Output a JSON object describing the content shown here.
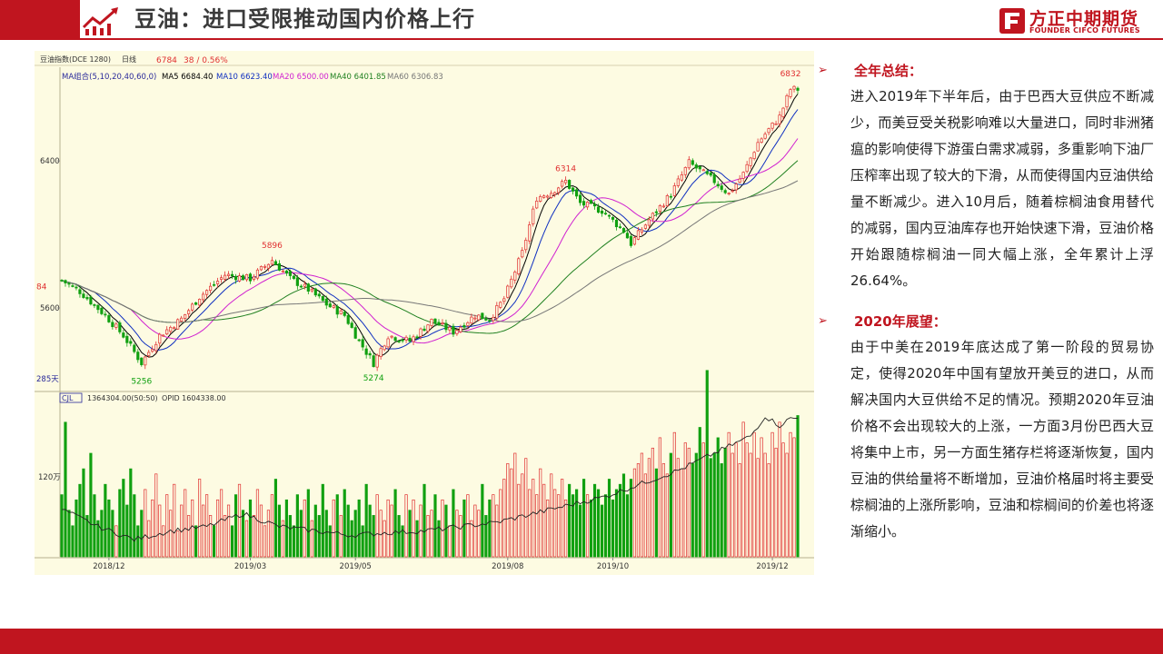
{
  "header": {
    "title": "豆油：进口受限推动国内价格上行",
    "brand_cn": "方正中期期货",
    "brand_en": "FOUNDER CIFCO FUTURES"
  },
  "colors": {
    "brand_red": "#c0151f",
    "chart_bg": "#fdfbe2",
    "up": "#e03030",
    "down": "#10a010"
  },
  "chart_data": {
    "type": "candlestick",
    "info_bar": {
      "symbol": "豆油指数(DCE 1280)",
      "period": "日线",
      "last": "6784",
      "change": "38 / 0.56%"
    },
    "ma_legend": [
      {
        "label": "MA组合(5,10,20,40,60,0)",
        "color": "#2a2a9a"
      },
      {
        "label": "MA5 6684.40",
        "color": "#000000"
      },
      {
        "label": "MA10 6623.40",
        "color": "#1030c0"
      },
      {
        "label": "MA20 6500.00",
        "color": "#d020d0"
      },
      {
        "label": "MA40 6401.85",
        "color": "#208020"
      },
      {
        "label": "MA60 6306.83",
        "color": "#777777"
      }
    ],
    "y_ticks": [
      {
        "value": 6400,
        "label": "6400"
      },
      {
        "value": 5600,
        "label": "5600"
      }
    ],
    "price_annotations": [
      {
        "i": 0,
        "value": 5720,
        "label": "84",
        "color": "#e03030"
      },
      {
        "i": 22,
        "value": 5256,
        "label": "5256",
        "color": "#10a010"
      },
      {
        "i": 58,
        "value": 5896,
        "label": "5896",
        "color": "#e03030"
      },
      {
        "i": 86,
        "value": 5274,
        "label": "5274",
        "color": "#10a010"
      },
      {
        "i": 139,
        "value": 6314,
        "label": "6314",
        "color": "#e03030"
      },
      {
        "i": 201,
        "value": 6832,
        "label": "6832",
        "color": "#e03030"
      }
    ],
    "day_count": "285天",
    "volume_legend": {
      "name": "CJL",
      "cjl": "1364304.00(50:50)",
      "opid": "OPID 1604338.00"
    },
    "volume_y_label": "120万",
    "x_labels": [
      {
        "i": 13,
        "label": "2018/12"
      },
      {
        "i": 52,
        "label": "2019/03"
      },
      {
        "i": 81,
        "label": "2019/05"
      },
      {
        "i": 123,
        "label": "2019/08"
      },
      {
        "i": 152,
        "label": "2019/10"
      },
      {
        "i": 196,
        "label": "2019/12"
      }
    ],
    "anchors": [
      [
        0,
        5750
      ],
      [
        5,
        5690
      ],
      [
        12,
        5560
      ],
      [
        17,
        5450
      ],
      [
        22,
        5300
      ],
      [
        27,
        5450
      ],
      [
        33,
        5540
      ],
      [
        38,
        5660
      ],
      [
        45,
        5780
      ],
      [
        52,
        5760
      ],
      [
        58,
        5860
      ],
      [
        63,
        5760
      ],
      [
        68,
        5700
      ],
      [
        73,
        5620
      ],
      [
        78,
        5560
      ],
      [
        82,
        5420
      ],
      [
        86,
        5300
      ],
      [
        90,
        5450
      ],
      [
        96,
        5420
      ],
      [
        102,
        5530
      ],
      [
        108,
        5470
      ],
      [
        114,
        5560
      ],
      [
        118,
        5540
      ],
      [
        122,
        5650
      ],
      [
        127,
        5900
      ],
      [
        131,
        6200
      ],
      [
        135,
        6230
      ],
      [
        139,
        6290
      ],
      [
        143,
        6170
      ],
      [
        149,
        6130
      ],
      [
        155,
        6020
      ],
      [
        157,
        5950
      ],
      [
        162,
        6080
      ],
      [
        168,
        6220
      ],
      [
        173,
        6390
      ],
      [
        180,
        6290
      ],
      [
        184,
        6220
      ],
      [
        188,
        6330
      ],
      [
        192,
        6500
      ],
      [
        198,
        6640
      ],
      [
        201,
        6790
      ]
    ],
    "volume": {
      "min": 0,
      "max": 1500000,
      "series": [
        600000,
        1300000,
        450000,
        300000,
        550000,
        700000,
        850000,
        400000,
        1000000,
        600000,
        350000,
        450000,
        700000,
        550000,
        450000,
        300000,
        650000,
        750000,
        500000,
        850000,
        600000,
        300000,
        450000,
        650000,
        350000,
        550000,
        800000,
        500000,
        300000,
        600000,
        450000,
        700000,
        250000,
        500000,
        650000,
        400000,
        550000,
        300000,
        750000,
        500000,
        600000,
        400000,
        300000,
        550000,
        650000,
        400000,
        500000,
        300000,
        600000,
        700000,
        450000,
        350000,
        550000,
        400000,
        650000,
        500000,
        300000,
        450000,
        600000,
        750000,
        500000,
        350000,
        550000,
        400000,
        300000,
        600000,
        450000,
        550000,
        650000,
        350000,
        500000,
        400000,
        700000,
        450000,
        300000,
        550000,
        600000,
        400000,
        650000,
        500000,
        350000,
        450000,
        550000,
        300000,
        700000,
        500000,
        400000,
        600000,
        450000,
        350000,
        550000,
        500000,
        650000,
        400000,
        300000,
        600000,
        450000,
        550000,
        350000,
        500000,
        700000,
        400000,
        450000,
        600000,
        350000,
        550000,
        500000,
        300000,
        650000,
        450000,
        400000,
        550000,
        600000,
        350000,
        500000,
        450000,
        700000,
        400000,
        550000,
        600000,
        500000,
        650000,
        750000,
        900000,
        850000,
        1000000,
        700000,
        800000,
        950000,
        650000,
        750000,
        600000,
        850000,
        700000,
        550000,
        800000,
        650000,
        600000,
        750000,
        550000,
        700000,
        600000,
        650000,
        500000,
        750000,
        600000,
        550000,
        700000,
        650000,
        500000,
        600000,
        750000,
        550000,
        650000,
        700000,
        800000,
        600000,
        750000,
        850000,
        900000,
        1000000,
        800000,
        950000,
        1050000,
        850000,
        1150000,
        900000,
        800000,
        1000000,
        1200000,
        950000,
        850000,
        1100000,
        1050000,
        900000,
        1000000,
        1250000,
        1100000,
        1800000,
        950000,
        1000000,
        1150000,
        900000,
        1050000,
        1200000,
        1000000,
        1100000,
        900000,
        1300000,
        1100000,
        1000000,
        1200000,
        950000,
        1150000,
        1000000,
        900000,
        1200000,
        1050000,
        1300000,
        1100000,
        1000000,
        1200000,
        1150000,
        1364304
      ]
    },
    "opi": {
      "min": 0,
      "max": 1800000,
      "anchors": [
        [
          0,
          550000
        ],
        [
          10,
          350000
        ],
        [
          20,
          200000
        ],
        [
          30,
          300000
        ],
        [
          40,
          350000
        ],
        [
          50,
          500000
        ],
        [
          60,
          350000
        ],
        [
          70,
          300000
        ],
        [
          80,
          250000
        ],
        [
          90,
          280000
        ],
        [
          100,
          300000
        ],
        [
          110,
          350000
        ],
        [
          120,
          400000
        ],
        [
          130,
          500000
        ],
        [
          140,
          600000
        ],
        [
          150,
          700000
        ],
        [
          160,
          850000
        ],
        [
          170,
          1000000
        ],
        [
          180,
          1200000
        ],
        [
          190,
          1400000
        ],
        [
          194,
          1630000
        ],
        [
          198,
          1520000
        ],
        [
          201,
          1604338
        ]
      ]
    }
  },
  "text": {
    "section1_title": "全年总结：",
    "section1_body": "进入2019年下半年后，由于巴西大豆供应不断减少，而美豆受关税影响难以大量进口，同时非洲猪瘟的影响使得下游蛋白需求减弱，多重影响下油厂压榨率出现了较大的下滑，从而使得国内豆油供给量不断减少。进入10月后，随着棕榈油食用替代的减弱，国内豆油库存也开始快速下滑，豆油价格开始跟随棕榈油一同大幅上涨，全年累计上浮26.64%。",
    "section2_title": "2020年展望：",
    "section2_body": "由于中美在2019年底达成了第一阶段的贸易协定，使得2020年中国有望放开美豆的进口，从而解决国内大豆供给不足的情况。预期2020年豆油价格不会出现较大的上涨，一方面3月份巴西大豆将集中上市，另一方面生猪存栏将逐渐恢复，国内豆油的供给量将不断增加，豆油价格届时将主要受棕榈油的上涨所影响，豆油和棕榈间的价差也将逐渐缩小。"
  }
}
